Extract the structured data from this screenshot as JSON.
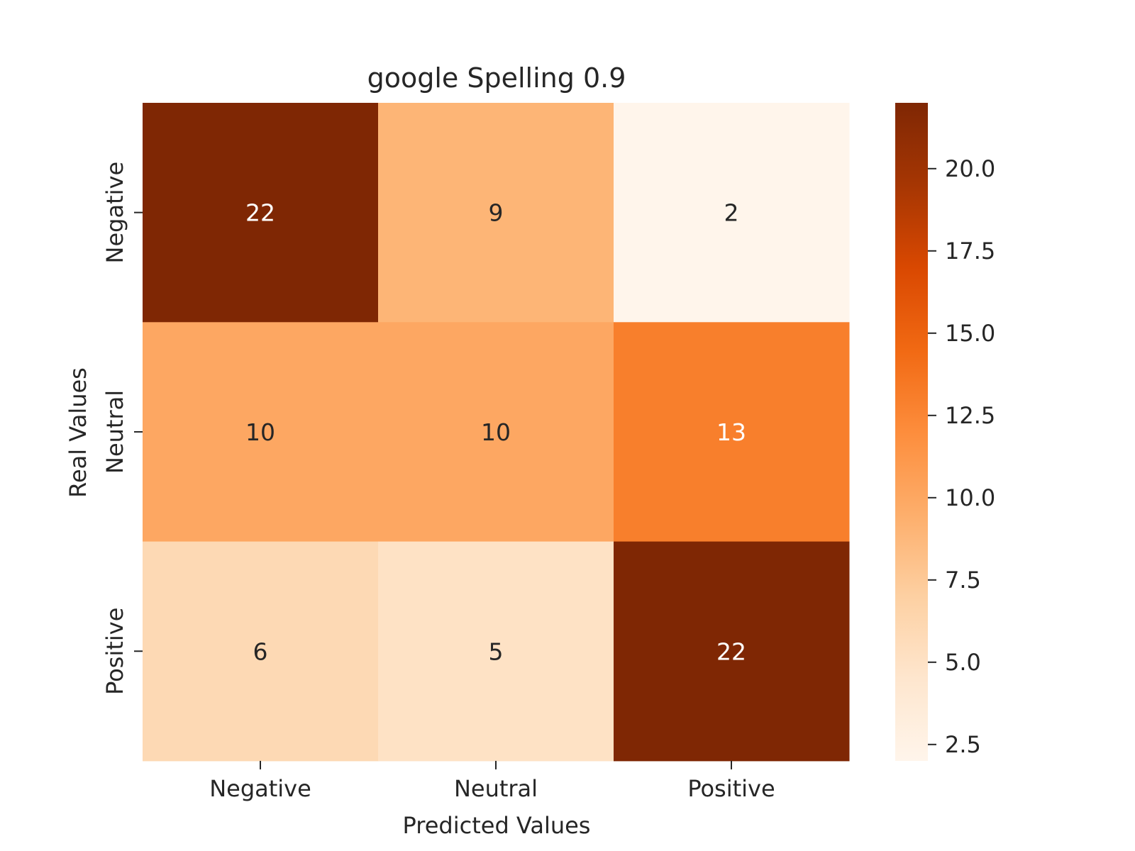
{
  "chart_data": {
    "type": "heatmap",
    "title": "google Spelling 0.9",
    "xlabel": "Predicted Values",
    "ylabel": "Real Values",
    "x_categories": [
      "Negative",
      "Neutral",
      "Positive"
    ],
    "y_categories": [
      "Negative",
      "Neutral",
      "Positive"
    ],
    "values": [
      [
        22,
        9,
        2
      ],
      [
        10,
        10,
        13
      ],
      [
        6,
        5,
        22
      ]
    ],
    "colorbar": {
      "range": [
        2,
        22
      ],
      "ticks": [
        2.5,
        5.0,
        7.5,
        10.0,
        12.5,
        15.0,
        17.5,
        20.0
      ],
      "tick_labels": [
        "2.5",
        "5.0",
        "7.5",
        "10.0",
        "12.5",
        "15.0",
        "17.5",
        "20.0"
      ]
    },
    "colormap": "Oranges",
    "colormap_stops": [
      "#fff5eb",
      "#fee6ce",
      "#fdd0a2",
      "#fdae6b",
      "#fd8d3c",
      "#f16913",
      "#d94801",
      "#a63603",
      "#7f2704"
    ],
    "annotation_colors": {
      "dark_text": "#262626",
      "light_text": "#ffffff"
    }
  }
}
